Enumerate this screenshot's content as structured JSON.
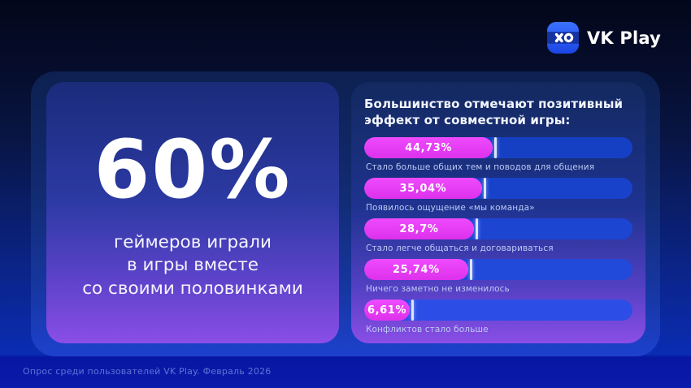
{
  "brand": {
    "name": "VK Play",
    "icon": "vk-play-gamepad-xo-icon",
    "tile_color_top": "#3a72ff",
    "tile_color_bottom": "#1c45e4",
    "tile_band_color": "#16329e"
  },
  "colors": {
    "background_top": "#03071a",
    "background_bottom": "#0a2cb2",
    "card_gradient_top": "#1b2b7a",
    "card_gradient_bottom": "#8a4ee6",
    "bar_fill_magenta": "#e03df2",
    "bar_track_blue": "#1d45d2",
    "bar_divider_white": "#dce5fb"
  },
  "left_card": {
    "stat_value": "60%",
    "stat_caption_lines": [
      "геймеров играли",
      "в игры вместе",
      "со своими половинками"
    ]
  },
  "chart_data": {
    "type": "bar",
    "orientation": "horizontal",
    "title": "Большинство отмечают позитивный эффект от совместной игры:",
    "unit": "%",
    "xlim": [
      0,
      100
    ],
    "grid": false,
    "legend": false,
    "categories": [
      "Стало больше общих тем и поводов для общения",
      "Появилось ощущение «мы команда»",
      "Стало легче общаться и договариваться",
      "Ничего заметно не изменилось",
      "Конфликтов стало больше"
    ],
    "values": [
      44.73,
      35.04,
      28.7,
      25.74,
      6.61
    ],
    "value_labels": [
      "44,73%",
      "35,04%",
      "28,7%",
      "25,74%",
      "6,61%"
    ],
    "display_fill_pct": [
      49.5,
      45.4,
      42.4,
      40.2,
      18.5
    ]
  },
  "footer": {
    "source_note": "Опрос среди пользователей VK Play. Февраль 2026"
  }
}
